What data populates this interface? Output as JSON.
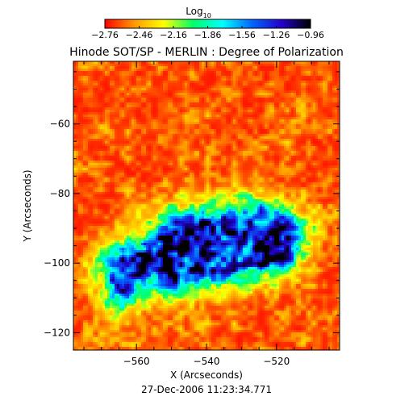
{
  "chart_data": {
    "type": "heatmap",
    "title": "Hinode SOT/SP - MERLIN : Degree of Polarization",
    "xlabel": "X (Arcseconds)",
    "ylabel": "Y (Arcseconds)",
    "timestamp": "27-Dec-2006 11:23:34.771",
    "x_range": [
      -578,
      -502
    ],
    "y_range": [
      -125,
      -42
    ],
    "x_ticks": [
      -560,
      -540,
      -520
    ],
    "y_ticks": [
      -60,
      -80,
      -100,
      -120
    ],
    "x_tick_labels": [
      "−560",
      "−540",
      "−520"
    ],
    "y_tick_labels": [
      "−60",
      "−80",
      "−100",
      "−120"
    ],
    "colorbar": {
      "label_main": "Log",
      "label_sub": "10",
      "range": [
        -2.76,
        -0.96
      ],
      "ticks": [
        -2.76,
        -2.46,
        -2.16,
        -1.86,
        -1.56,
        -1.26,
        -0.96
      ],
      "tick_labels": [
        "−2.76",
        "−2.46",
        "−2.16",
        "−1.86",
        "−1.56",
        "−1.26",
        "−0.96"
      ],
      "colormap": [
        "#ff0000",
        "#ff9900",
        "#ffff00",
        "#00ff66",
        "#00ffff",
        "#0066ff",
        "#2200cc",
        "#000000"
      ]
    },
    "grid": false,
    "legend": "none",
    "description_values": {
      "background_level": -2.7,
      "active_region_level": -1.3,
      "active_region_center": [
        -540,
        -95
      ]
    }
  }
}
